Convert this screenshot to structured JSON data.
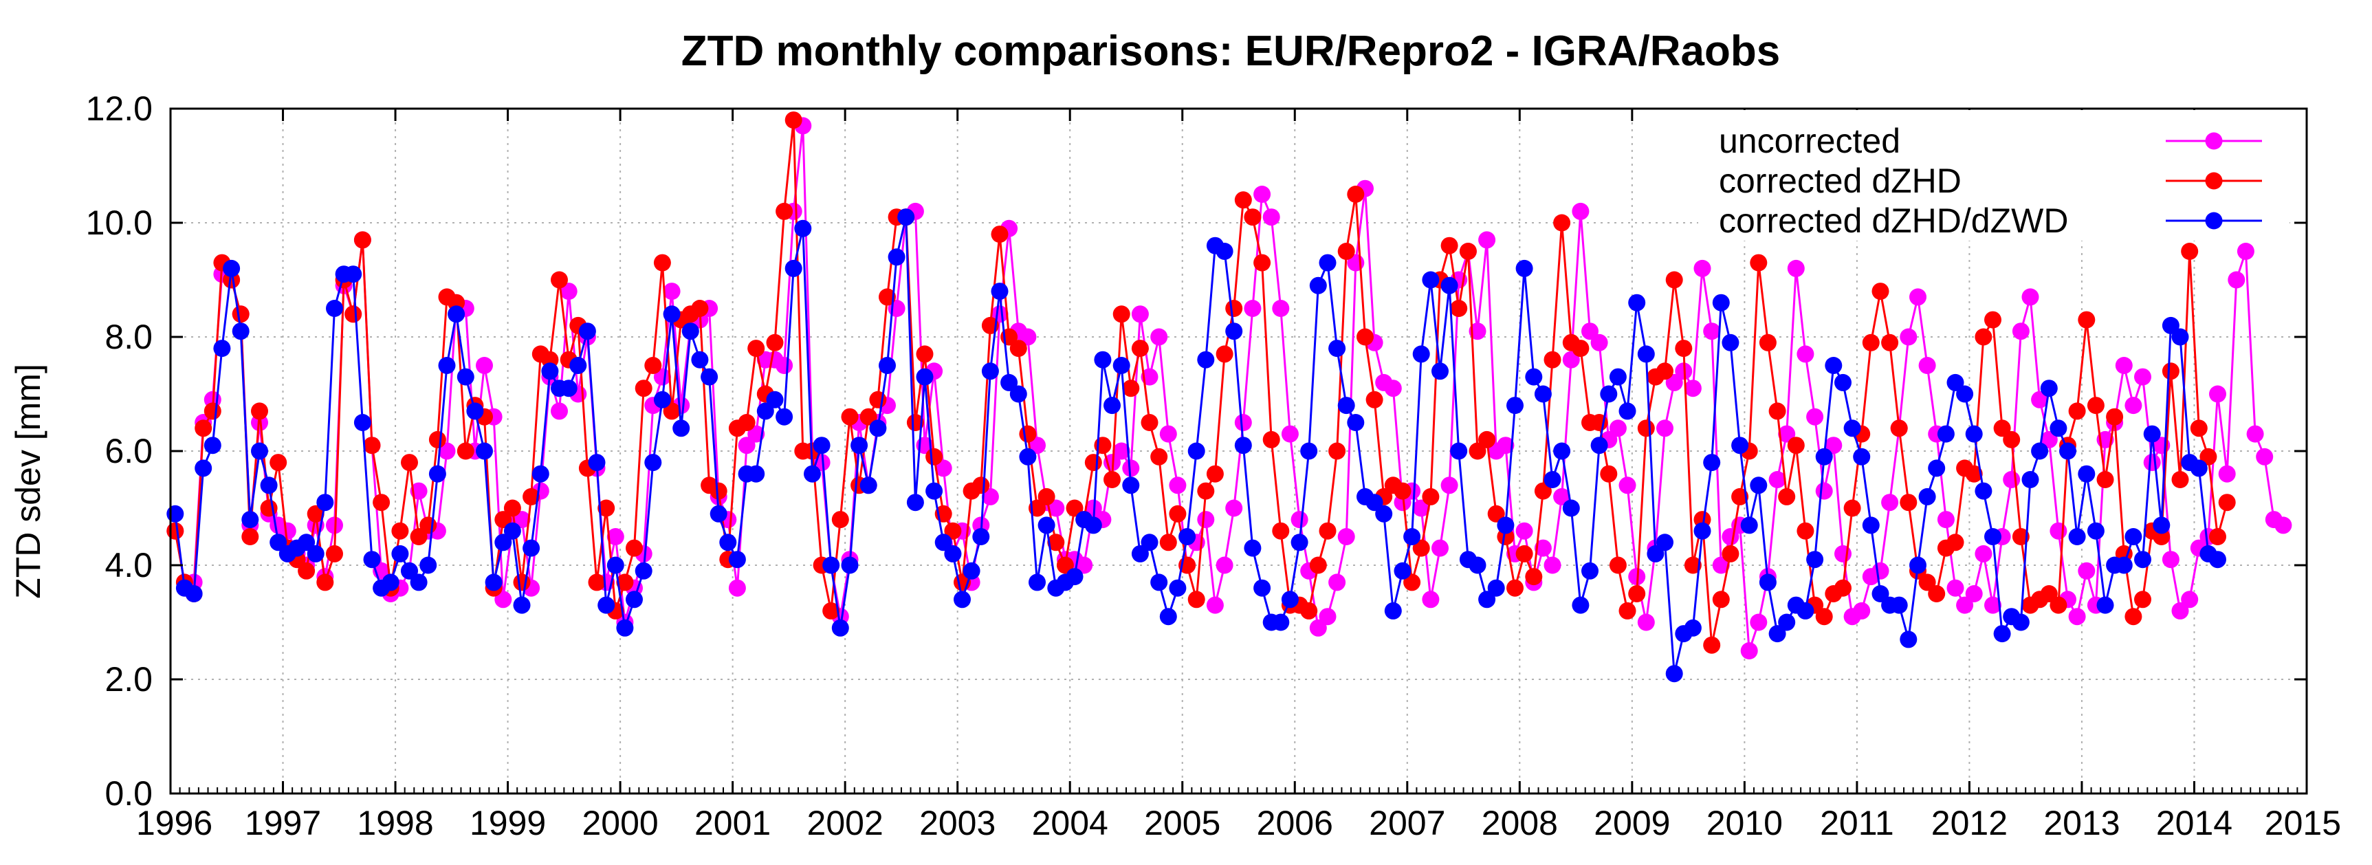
{
  "chart_data": {
    "type": "line",
    "title": "ZTD monthly comparisons: EUR/Repro2 - IGRA/Raobs",
    "xlabel": "",
    "ylabel": "ZTD sdev [mm]",
    "xlim": [
      1996,
      2015
    ],
    "ylim": [
      0,
      12
    ],
    "x_ticks": [
      "1996",
      "1997",
      "1998",
      "1999",
      "2000",
      "2001",
      "2002",
      "2003",
      "2004",
      "2005",
      "2006",
      "2007",
      "2008",
      "2009",
      "2010",
      "2011",
      "2012",
      "2013",
      "2014",
      "2015"
    ],
    "y_ticks": [
      "0.0",
      "2.0",
      "4.0",
      "6.0",
      "8.0",
      "10.0",
      "12.0"
    ],
    "grid": true,
    "legend_position": "top-right",
    "series": [
      {
        "name": "uncorrected",
        "color": "#ff00ff",
        "yearly_months": [
          [
            4.6,
            3.7,
            3.7,
            6.5,
            6.9,
            9.1,
            9.0,
            8.4,
            4.7,
            6.5,
            4.9,
            4.7
          ],
          [
            4.6,
            4.2,
            4.0,
            4.7,
            3.8,
            4.7,
            8.9,
            8.4,
            9.7,
            6.1,
            3.9,
            3.5
          ],
          [
            3.6,
            3.9,
            5.3,
            4.6,
            4.6,
            6.0,
            8.6,
            8.5,
            6.0,
            7.5,
            6.6,
            3.4
          ],
          [
            4.7,
            4.8,
            3.6,
            5.3,
            7.3,
            6.7,
            8.8,
            7.0,
            8.0,
            5.7,
            3.7,
            4.5
          ],
          [
            3.0,
            3.6,
            4.2,
            6.8,
            7.3,
            8.8,
            6.8,
            8.2,
            8.3,
            8.5,
            5.2,
            4.8
          ],
          [
            3.6,
            6.1,
            6.3,
            7.6,
            7.6,
            7.5,
            10.2,
            11.7,
            6.0,
            5.8,
            4.0,
            3.1
          ],
          [
            4.1,
            6.5,
            5.4,
            6.5,
            6.8,
            8.5,
            10.1,
            10.2,
            6.1,
            7.4,
            5.7,
            4.2
          ],
          [
            4.6,
            3.7,
            4.7,
            5.2,
            8.4,
            9.9,
            8.1,
            8.0,
            6.1,
            5.1,
            5.0,
            4.1
          ],
          [
            4.1,
            4.0,
            5.0,
            4.8,
            5.8,
            6.0,
            5.7,
            8.4,
            7.3,
            8.0,
            6.3,
            5.4
          ],
          [
            4.0,
            4.4,
            4.8,
            3.3,
            4.0,
            5.0,
            6.5,
            8.5,
            10.5,
            10.1,
            8.5,
            6.3
          ],
          [
            4.8,
            3.9,
            2.9,
            3.1,
            3.7,
            4.5,
            9.3,
            10.6,
            7.9,
            7.2,
            7.1,
            5.1
          ],
          [
            5.3,
            5.0,
            3.4,
            4.3,
            5.4,
            9.0,
            9.5,
            8.1,
            9.7,
            6.0,
            6.1,
            4.2
          ],
          [
            4.6,
            3.7,
            4.3,
            4.0,
            5.2,
            7.6,
            10.2,
            8.1,
            7.9,
            6.2,
            6.4,
            5.4
          ],
          [
            3.8,
            3.0,
            4.3,
            6.4,
            7.2,
            7.4,
            7.1,
            9.2,
            8.1,
            4.0,
            4.5,
            4.7
          ],
          [
            2.5,
            3.0,
            3.8,
            5.5,
            6.3,
            9.2,
            7.7,
            6.6,
            5.3,
            6.1,
            4.2,
            3.1
          ],
          [
            3.2,
            3.8,
            3.9,
            5.1,
            6.4,
            8.0,
            8.7,
            7.5,
            6.3,
            4.8,
            3.6,
            3.3
          ],
          [
            3.5,
            4.2,
            3.3,
            4.5,
            5.5,
            8.1,
            8.7,
            6.9,
            6.2,
            4.6,
            3.4,
            3.1
          ],
          [
            3.9,
            3.3,
            6.2,
            6.5,
            7.5,
            6.8,
            7.3,
            5.8,
            6.1,
            4.1,
            3.2,
            3.4
          ],
          [
            4.3,
            4.5,
            7.0,
            5.6,
            9.0,
            9.5,
            6.3,
            5.9,
            4.8,
            4.7
          ]
        ]
      },
      {
        "name": "corrected dZHD",
        "color": "#ff0000",
        "yearly_months": [
          [
            4.6,
            3.7,
            3.5,
            6.4,
            6.7,
            9.3,
            9.0,
            8.4,
            4.5,
            6.7,
            5.0,
            5.8
          ],
          [
            4.3,
            4.1,
            3.9,
            4.9,
            3.7,
            4.2,
            9.0,
            8.4,
            9.7,
            6.1,
            5.1,
            3.6
          ],
          [
            4.6,
            5.8,
            4.5,
            4.7,
            6.2,
            8.7,
            8.6,
            6.0,
            6.8,
            6.6,
            3.6,
            4.8
          ],
          [
            5.0,
            3.7,
            5.2,
            7.7,
            7.6,
            9.0,
            7.6,
            8.2,
            5.7,
            3.7,
            5.0,
            3.2
          ],
          [
            3.7,
            4.3,
            7.1,
            7.5,
            9.3,
            6.7,
            8.3,
            8.4,
            8.5,
            5.4,
            5.3,
            4.1
          ],
          [
            6.4,
            6.5,
            7.8,
            7.0,
            7.9,
            10.2,
            11.8,
            6.0,
            6.0,
            4.0,
            3.2,
            4.8
          ],
          [
            6.6,
            5.4,
            6.6,
            6.9,
            8.7,
            10.1,
            10.1,
            6.5,
            7.7,
            5.9,
            4.9,
            4.6
          ],
          [
            3.7,
            5.3,
            5.4,
            8.2,
            9.8,
            8.0,
            7.8,
            6.3,
            5.0,
            5.2,
            4.4,
            4.0
          ],
          [
            5.0,
            4.8,
            5.8,
            6.1,
            5.5,
            8.4,
            7.1,
            7.8,
            6.5,
            5.9,
            4.4,
            4.9
          ],
          [
            4.0,
            3.4,
            5.3,
            5.6,
            7.7,
            8.5,
            10.4,
            10.1,
            9.3,
            6.2,
            4.6,
            3.3
          ],
          [
            3.3,
            3.2,
            4.0,
            4.6,
            6.0,
            9.5,
            10.5,
            8.0,
            6.9,
            5.2,
            5.4,
            5.3
          ],
          [
            3.7,
            4.3,
            5.2,
            9.0,
            9.6,
            8.5,
            9.5,
            6.0,
            6.2,
            4.9,
            4.5,
            3.6
          ],
          [
            4.2,
            3.8,
            5.3,
            7.6,
            10.0,
            7.9,
            7.8,
            6.5,
            6.5,
            5.6,
            4.0,
            3.2
          ],
          [
            3.5,
            6.4,
            7.3,
            7.4,
            9.0,
            7.8,
            4.0,
            4.8,
            2.6,
            3.4,
            4.2,
            5.2
          ],
          [
            6.0,
            9.3,
            7.9,
            6.7,
            5.2,
            6.1,
            4.6,
            3.3,
            3.1,
            3.5,
            3.6,
            5.0
          ],
          [
            6.3,
            7.9,
            8.8,
            7.9,
            6.4,
            5.1,
            3.9,
            3.7,
            3.5,
            4.3,
            4.4,
            5.7
          ],
          [
            5.6,
            8.0,
            8.3,
            6.4,
            6.2,
            4.5,
            3.3,
            3.4,
            3.5,
            3.3,
            6.1,
            6.7
          ],
          [
            8.3,
            6.8,
            5.5,
            6.6,
            4.2,
            3.1,
            3.4,
            4.6,
            4.5,
            7.4,
            5.5,
            9.5
          ],
          [
            6.4,
            5.9,
            4.5,
            5.1
          ]
        ]
      },
      {
        "name": "corrected dZHD/dZWD",
        "color": "#0000ff",
        "yearly_months": [
          [
            4.9,
            3.6,
            3.5,
            5.7,
            6.1,
            7.8,
            9.2,
            8.1,
            4.8,
            6.0,
            5.4,
            4.4
          ],
          [
            4.2,
            4.3,
            4.4,
            4.2,
            5.1,
            8.5,
            9.1,
            9.1,
            6.5,
            4.1,
            3.6,
            3.7
          ],
          [
            4.2,
            3.9,
            3.7,
            4.0,
            5.6,
            7.5,
            8.4,
            7.3,
            6.7,
            6.0,
            3.7,
            4.4
          ],
          [
            4.6,
            3.3,
            4.3,
            5.6,
            7.4,
            7.1,
            7.1,
            7.5,
            8.1,
            5.8,
            3.3,
            4.0
          ],
          [
            2.9,
            3.4,
            3.9,
            5.8,
            6.9,
            8.4,
            6.4,
            8.1,
            7.6,
            7.3,
            4.9,
            4.4
          ],
          [
            4.1,
            5.6,
            5.6,
            6.7,
            6.9,
            6.6,
            9.2,
            9.9,
            5.6,
            6.1,
            4.0,
            2.9
          ],
          [
            4.0,
            6.1,
            5.4,
            6.4,
            7.5,
            9.4,
            10.1,
            5.1,
            7.3,
            5.3,
            4.4,
            4.2
          ],
          [
            3.4,
            3.9,
            4.5,
            7.4,
            8.8,
            7.2,
            7.0,
            5.9,
            3.7,
            4.7,
            3.6,
            3.7
          ],
          [
            3.8,
            4.8,
            4.7,
            7.6,
            6.8,
            7.5,
            5.4,
            4.2,
            4.4,
            3.7,
            3.1,
            3.6
          ],
          [
            4.5,
            6.0,
            7.6,
            9.6,
            9.5,
            8.1,
            6.1,
            4.3,
            3.6,
            3.0,
            3.0,
            3.4
          ],
          [
            4.4,
            6.0,
            8.9,
            9.3,
            7.8,
            6.8,
            6.5,
            5.2,
            5.1,
            4.9,
            3.2,
            3.9
          ],
          [
            4.5,
            7.7,
            9.0,
            7.4,
            8.9,
            6.0,
            4.1,
            4.0,
            3.4,
            3.6,
            4.7,
            6.8
          ],
          [
            9.2,
            7.3,
            7.0,
            5.5,
            6.0,
            5.0,
            3.3,
            3.9,
            6.1,
            7.0,
            7.3,
            6.7
          ],
          [
            8.6,
            7.7,
            4.2,
            4.4,
            2.1,
            2.8,
            2.9,
            4.6,
            5.8,
            8.6,
            7.9,
            6.1
          ],
          [
            4.7,
            5.4,
            3.7,
            2.8,
            3.0,
            3.3,
            3.2,
            4.1,
            5.9,
            7.5,
            7.2,
            6.4
          ],
          [
            5.9,
            4.7,
            3.5,
            3.3,
            3.3,
            2.7,
            4.0,
            5.2,
            5.7,
            6.3,
            7.2,
            7.0
          ],
          [
            6.3,
            5.3,
            4.5,
            2.8,
            3.1,
            3.0,
            5.5,
            6.0,
            7.1,
            6.4,
            6.0,
            4.5
          ],
          [
            5.6,
            4.6,
            3.3,
            4.0,
            4.0,
            4.5,
            4.1,
            6.3,
            4.7,
            8.2,
            8.0,
            5.8
          ],
          [
            5.7,
            4.2,
            4.1
          ]
        ]
      }
    ]
  }
}
